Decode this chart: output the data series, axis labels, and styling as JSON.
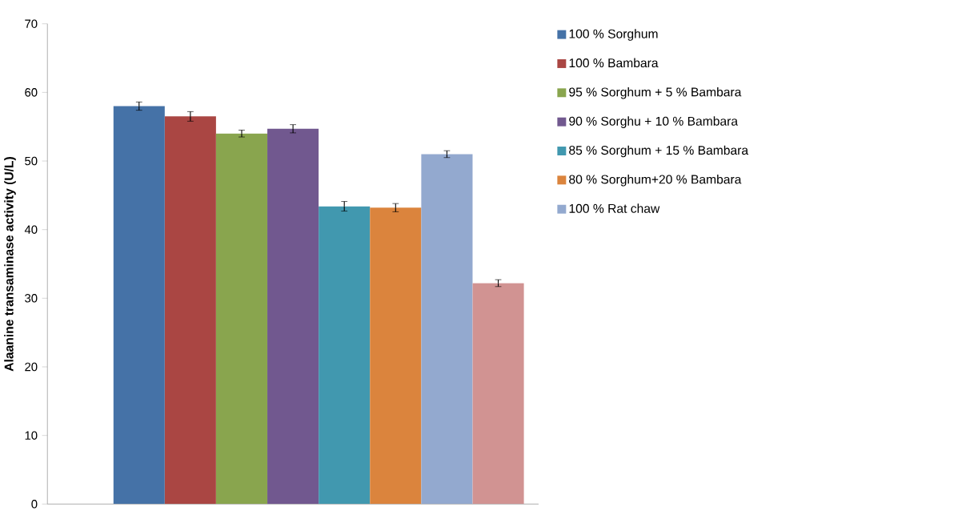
{
  "chart_data": {
    "type": "bar",
    "ylabel": "**Alaanine transaminase activity (U/L)**",
    "categories": [
      null
    ],
    "ylim": [
      0,
      70
    ],
    "yticks": [
      0,
      10,
      20,
      30,
      40,
      50,
      60,
      70
    ],
    "legend": "right",
    "series": [
      {
        "name": "100 % Sorghum",
        "color": "#4572a7",
        "values": [
          58.0
        ],
        "errors": [
          0.6
        ]
      },
      {
        "name": "100 % Bambara",
        "color": "#aa4643",
        "values": [
          56.5
        ],
        "errors": [
          0.7
        ]
      },
      {
        "name": "95 % Sorghum + 5 % Bambara",
        "color": "#89a54e",
        "values": [
          54.0
        ],
        "errors": [
          0.5
        ]
      },
      {
        "name": "90 % Sorghu + 10 % Bambara",
        "color": "#71588f",
        "values": [
          54.7
        ],
        "errors": [
          0.6
        ]
      },
      {
        "name": "85 % Sorghum + 15 % Bambara",
        "color": "#4198af",
        "values": [
          43.4
        ],
        "errors": [
          0.7
        ]
      },
      {
        "name": "80 % Sorghum+20 % Bambara",
        "color": "#db843d",
        "values": [
          43.2
        ],
        "errors": [
          0.6
        ]
      },
      {
        "name": "100 % Rat chaw",
        "color": "#93a9cf",
        "values": [
          51.0
        ],
        "errors": [
          0.5
        ]
      },
      {
        "color": "#d19392",
        "values": [
          32.2
        ],
        "errors": [
          0.5
        ]
      }
    ]
  }
}
